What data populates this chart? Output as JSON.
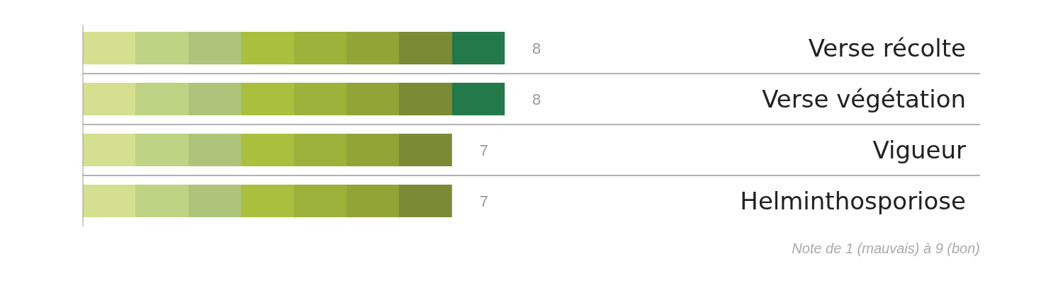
{
  "chart_data": {
    "type": "bar",
    "orientation": "horizontal",
    "categories": [
      "Verse récolte",
      "Verse végétation",
      "Vigueur",
      "Helminthosporiose"
    ],
    "values": [
      8,
      8,
      7,
      7
    ],
    "data_labels": true,
    "annotations": [
      "Note de 1 (mauvais) à 9 (bon)"
    ]
  }
}
